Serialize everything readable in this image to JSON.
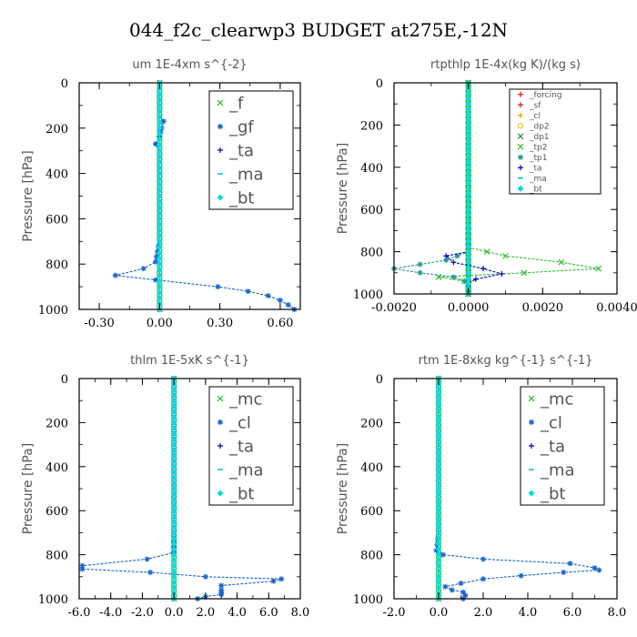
{
  "figure": {
    "title": "044_f2c_clearwp3  BUDGET at275E,-12N"
  },
  "chart_data": [
    {
      "type": "line",
      "title": "um   1E-4xm  s^{-2}",
      "ylabel": "Pressure [hPa]",
      "xlim": [
        -0.4,
        0.7
      ],
      "ylim": [
        1000,
        0
      ],
      "xticks": [
        "-0.30",
        "0.00",
        "0.30",
        "0.60"
      ],
      "xtick_values": [
        -0.3,
        0.0,
        0.3,
        0.6
      ],
      "yticks": [
        "0",
        "200",
        "400",
        "600",
        "800",
        "1000"
      ],
      "ytick_values": [
        0,
        200,
        400,
        600,
        800,
        1000
      ],
      "legend_position": "top-right",
      "legend_font": 18,
      "series": [
        {
          "name": "_f",
          "color": "#22bb22",
          "marker": "x",
          "pressure": [
            0,
            50,
            100,
            150,
            200,
            250,
            300,
            400,
            500,
            600,
            700,
            800,
            850,
            900,
            950,
            1000
          ],
          "values": [
            0,
            0,
            0,
            0,
            0,
            0,
            0,
            0,
            0,
            0,
            0,
            0,
            0,
            0,
            0,
            0
          ]
        },
        {
          "name": "_gf",
          "color": "#1a66cc",
          "marker": "*",
          "pressure": [
            0,
            150,
            170,
            200,
            240,
            270,
            300,
            400,
            500,
            600,
            700,
            790,
            820,
            850,
            870,
            900,
            920,
            940,
            960,
            980,
            1000
          ],
          "values": [
            0,
            0.0,
            0.02,
            0.01,
            0.0,
            -0.02,
            0.0,
            0.0,
            0.0,
            0.0,
            0.0,
            -0.02,
            -0.08,
            -0.22,
            -0.02,
            0.29,
            0.44,
            0.54,
            0.6,
            0.64,
            0.67
          ]
        },
        {
          "name": "_ta",
          "color": "#0000cc",
          "marker": "+",
          "pressure": [
            0,
            200,
            400,
            600,
            800,
            1000
          ],
          "values": [
            0,
            0,
            0,
            0,
            0,
            0
          ]
        },
        {
          "name": "_ma",
          "color": "#00aacc",
          "marker": "-",
          "pressure": [
            0,
            200,
            400,
            600,
            800,
            1000
          ],
          "values": [
            0,
            0,
            0,
            0,
            0,
            0
          ]
        },
        {
          "name": "_bt",
          "color": "#00dddd",
          "marker": "◆",
          "pressure": [
            0,
            200,
            400,
            600,
            800,
            1000
          ],
          "values": [
            0,
            0,
            0,
            0,
            0,
            0
          ]
        }
      ]
    },
    {
      "type": "line",
      "title": "rtpthlp   1E-4x(kg K)/(kg s)",
      "ylabel": "Pressure [hPa]",
      "xlim": [
        -0.002,
        0.004
      ],
      "ylim": [
        1000,
        0
      ],
      "xticks": [
        "-0.0020",
        "0.0000",
        "0.0020",
        "0.0040"
      ],
      "xtick_values": [
        -0.002,
        0.0,
        0.002,
        0.004
      ],
      "yticks": [
        "0",
        "200",
        "400",
        "600",
        "800",
        "1000"
      ],
      "ytick_values": [
        0,
        200,
        400,
        600,
        800,
        1000
      ],
      "legend_position": "top-right",
      "legend_font": 9,
      "series": [
        {
          "name": "_forcing",
          "color": "#cc2222",
          "marker": "+",
          "pressure": [
            0,
            200,
            400,
            600,
            800,
            1000
          ],
          "values": [
            0,
            0,
            0,
            0,
            0,
            0
          ]
        },
        {
          "name": "_sf",
          "color": "#cc2222",
          "marker": "+",
          "pressure": [
            0,
            200,
            400,
            600,
            800,
            1000
          ],
          "values": [
            0,
            0,
            0,
            0,
            0,
            0
          ]
        },
        {
          "name": "_cl",
          "color": "#ddaa00",
          "marker": "+",
          "pressure": [
            0,
            200,
            400,
            600,
            800,
            1000
          ],
          "values": [
            0,
            0,
            0,
            0,
            0,
            0
          ]
        },
        {
          "name": "_dp2",
          "color": "#cccc00",
          "marker": "o",
          "pressure": [
            0,
            200,
            400,
            600,
            800,
            1000
          ],
          "values": [
            0,
            0,
            0,
            0,
            0,
            0
          ]
        },
        {
          "name": "_dp1",
          "color": "#228822",
          "marker": "x",
          "pressure": [
            0,
            200,
            400,
            600,
            800,
            1000
          ],
          "values": [
            0,
            0,
            0,
            0,
            0,
            0
          ]
        },
        {
          "name": "_tp2",
          "color": "#33bb33",
          "marker": "x",
          "pressure": [
            0,
            780,
            820,
            850,
            880,
            900,
            920,
            940,
            960,
            1000
          ],
          "values": [
            0,
            0,
            0.001,
            0.0025,
            0.0035,
            0.0015,
            -0.0008,
            -0.0001,
            0,
            0
          ]
        },
        {
          "name": "_tp1",
          "color": "#2a9a8a",
          "marker": "*",
          "pressure": [
            0,
            800,
            840,
            860,
            880,
            900,
            920,
            940,
            960,
            1000
          ],
          "values": [
            0,
            0,
            -0.0006,
            -0.0013,
            -0.002,
            -0.0013,
            -0.0004,
            -0.0001,
            0,
            0
          ]
        },
        {
          "name": "_ta",
          "color": "#0000cc",
          "marker": "+",
          "pressure": [
            0,
            800,
            820,
            850,
            880,
            905,
            930,
            950,
            1000
          ],
          "values": [
            0,
            0,
            -0.0006,
            -0.0004,
            0.0004,
            0.0009,
            0.0002,
            0,
            0
          ]
        },
        {
          "name": "_ma",
          "color": "#00aacc",
          "marker": "-",
          "pressure": [
            0,
            200,
            400,
            600,
            800,
            1000
          ],
          "values": [
            0,
            0,
            0,
            0,
            0,
            0
          ]
        },
        {
          "name": "_bt",
          "color": "#00dddd",
          "marker": "◆",
          "pressure": [
            0,
            200,
            400,
            600,
            800,
            1000
          ],
          "values": [
            0,
            0,
            0,
            0,
            0,
            0
          ]
        }
      ]
    },
    {
      "type": "line",
      "title": "thlm   1E-5xK  s^{-1}",
      "ylabel": "Pressure [hPa]",
      "xlim": [
        -6.0,
        8.0
      ],
      "ylim": [
        1000,
        0
      ],
      "xticks": [
        "-6.0",
        "-4.0",
        "-2.0",
        "0.0",
        "2.0",
        "4.0",
        "6.0",
        "8.0"
      ],
      "xtick_values": [
        -6.0,
        -4.0,
        -2.0,
        0.0,
        2.0,
        4.0,
        6.0,
        8.0
      ],
      "yticks": [
        "0",
        "200",
        "400",
        "600",
        "800",
        "1000"
      ],
      "ytick_values": [
        0,
        200,
        400,
        600,
        800,
        1000
      ],
      "legend_position": "top-right",
      "legend_font": 18,
      "series": [
        {
          "name": "_mc",
          "color": "#22bb22",
          "marker": "x",
          "pressure": [
            0,
            200,
            400,
            600,
            800,
            1000
          ],
          "values": [
            0,
            0,
            0,
            0,
            0,
            0
          ]
        },
        {
          "name": "_cl",
          "color": "#1a66cc",
          "marker": "*",
          "pressure": [
            0,
            700,
            790,
            820,
            850,
            865,
            880,
            900,
            910,
            920,
            940,
            960,
            970,
            980,
            990,
            1000
          ],
          "values": [
            0,
            0,
            0.0,
            -1.7,
            -5.8,
            -5.8,
            -1.5,
            2.0,
            6.8,
            6.3,
            3.0,
            3.0,
            3.0,
            3.0,
            2.0,
            1.5
          ]
        },
        {
          "name": "_ta",
          "color": "#0000cc",
          "marker": "+",
          "pressure": [
            0,
            200,
            400,
            600,
            800,
            1000
          ],
          "values": [
            0,
            0,
            0,
            0,
            0,
            0
          ]
        },
        {
          "name": "_ma",
          "color": "#00aacc",
          "marker": "-",
          "pressure": [
            0,
            200,
            400,
            600,
            800,
            1000
          ],
          "values": [
            0,
            0,
            0,
            0,
            0,
            0
          ]
        },
        {
          "name": "_bt",
          "color": "#00dddd",
          "marker": "◆",
          "pressure": [
            0,
            200,
            400,
            600,
            800,
            1000
          ],
          "values": [
            0,
            0,
            0,
            0,
            0,
            0
          ]
        }
      ]
    },
    {
      "type": "line",
      "title": "rtm   1E-8xkg  kg^{-1}  s^{-1}",
      "ylabel": "Pressure [hPa]",
      "xlim": [
        -2.0,
        8.0
      ],
      "ylim": [
        1000,
        0
      ],
      "xticks": [
        "-2.0",
        "0.0",
        "2.0",
        "4.0",
        "6.0",
        "8.0"
      ],
      "xtick_values": [
        -2.0,
        0.0,
        2.0,
        4.0,
        6.0,
        8.0
      ],
      "yticks": [
        "0",
        "200",
        "400",
        "600",
        "800",
        "1000"
      ],
      "ytick_values": [
        0,
        200,
        400,
        600,
        800,
        1000
      ],
      "legend_position": "top-right",
      "legend_font": 18,
      "series": [
        {
          "name": "_mc",
          "color": "#22bb22",
          "marker": "x",
          "pressure": [
            0,
            200,
            400,
            600,
            800,
            1000
          ],
          "values": [
            0,
            0,
            0,
            0,
            0,
            0
          ]
        },
        {
          "name": "_cl",
          "color": "#1a66cc",
          "marker": "*",
          "pressure": [
            0,
            700,
            780,
            800,
            820,
            840,
            860,
            870,
            880,
            895,
            910,
            930,
            945,
            960,
            970,
            985,
            1000
          ],
          "values": [
            0,
            0,
            -0.1,
            0.2,
            2.0,
            5.9,
            7.0,
            7.2,
            5.6,
            3.7,
            2.0,
            1.0,
            0.3,
            0.6,
            1.1,
            1.2,
            1.1
          ]
        },
        {
          "name": "_ta",
          "color": "#0000cc",
          "marker": "+",
          "pressure": [
            0,
            200,
            400,
            600,
            800,
            1000
          ],
          "values": [
            0,
            0,
            0,
            0,
            0,
            0
          ]
        },
        {
          "name": "_ma",
          "color": "#00aacc",
          "marker": "-",
          "pressure": [
            0,
            200,
            400,
            600,
            800,
            1000
          ],
          "values": [
            0,
            0,
            0,
            0,
            0,
            0
          ]
        },
        {
          "name": "_bt",
          "color": "#00dddd",
          "marker": "◆",
          "pressure": [
            0,
            200,
            400,
            600,
            800,
            1000
          ],
          "values": [
            0,
            0,
            0,
            0,
            0,
            0
          ]
        }
      ]
    }
  ]
}
